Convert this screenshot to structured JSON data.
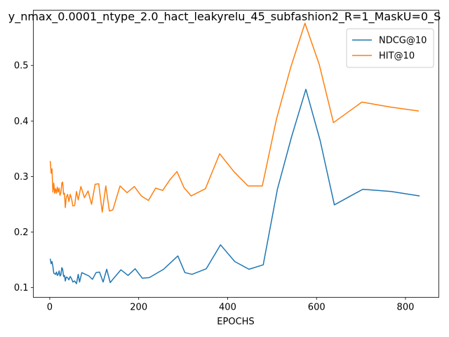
{
  "chart_data": {
    "type": "line",
    "title": "y_nmax_0.0001_ntype_2.0_hact_leakyrelu_45_subfashion2_R=1_MaskU=0_S",
    "xlabel": "EPOCHS",
    "ylabel": "",
    "xlim": [
      -37,
      875
    ],
    "ylim": [
      0.0825,
      0.5995
    ],
    "xticks": [
      0,
      200,
      400,
      600,
      800
    ],
    "yticks": [
      0.1,
      0.2,
      0.3,
      0.4,
      0.5
    ],
    "ytick_labels": [
      "0.1",
      "0.2",
      "0.3",
      "0.4",
      "0.5"
    ],
    "grid": false,
    "legend_position": "top-right",
    "series": [
      {
        "name": "NDCG@10",
        "color": "#1f77b4",
        "points": [
          [
            1,
            0.152
          ],
          [
            3,
            0.143
          ],
          [
            5,
            0.147
          ],
          [
            7,
            0.138
          ],
          [
            9,
            0.126
          ],
          [
            11,
            0.125
          ],
          [
            13,
            0.124
          ],
          [
            15,
            0.128
          ],
          [
            17,
            0.122
          ],
          [
            19,
            0.124
          ],
          [
            21,
            0.13
          ],
          [
            23,
            0.121
          ],
          [
            25,
            0.123
          ],
          [
            27,
            0.136
          ],
          [
            29,
            0.133
          ],
          [
            31,
            0.12
          ],
          [
            33,
            0.122
          ],
          [
            35,
            0.112
          ],
          [
            37,
            0.119
          ],
          [
            40,
            0.118
          ],
          [
            43,
            0.114
          ],
          [
            46,
            0.12
          ],
          [
            49,
            0.116
          ],
          [
            52,
            0.11
          ],
          [
            56,
            0.112
          ],
          [
            60,
            0.107
          ],
          [
            64,
            0.124
          ],
          [
            67,
            0.11
          ],
          [
            72,
            0.127
          ],
          [
            80,
            0.124
          ],
          [
            88,
            0.121
          ],
          [
            96,
            0.115
          ],
          [
            104,
            0.127
          ],
          [
            112,
            0.128
          ],
          [
            120,
            0.11
          ],
          [
            128,
            0.133
          ],
          [
            136,
            0.109
          ],
          [
            144,
            0.117
          ],
          [
            160,
            0.132
          ],
          [
            176,
            0.122
          ],
          [
            192,
            0.134
          ],
          [
            208,
            0.117
          ],
          [
            224,
            0.118
          ],
          [
            256,
            0.133
          ],
          [
            288,
            0.157
          ],
          [
            304,
            0.127
          ],
          [
            320,
            0.124
          ],
          [
            352,
            0.134
          ],
          [
            384,
            0.177
          ],
          [
            416,
            0.147
          ],
          [
            448,
            0.133
          ],
          [
            480,
            0.141
          ],
          [
            512,
            0.277
          ],
          [
            544,
            0.372
          ],
          [
            576,
            0.457
          ],
          [
            608,
            0.365
          ],
          [
            640,
            0.249
          ],
          [
            704,
            0.277
          ],
          [
            768,
            0.273
          ],
          [
            832,
            0.265
          ]
        ]
      },
      {
        "name": "HIT@10",
        "color": "#ff7f0e",
        "points": [
          [
            1,
            0.328
          ],
          [
            3,
            0.306
          ],
          [
            5,
            0.314
          ],
          [
            7,
            0.272
          ],
          [
            9,
            0.288
          ],
          [
            11,
            0.27
          ],
          [
            13,
            0.278
          ],
          [
            15,
            0.27
          ],
          [
            17,
            0.281
          ],
          [
            19,
            0.272
          ],
          [
            21,
            0.279
          ],
          [
            23,
            0.266
          ],
          [
            25,
            0.271
          ],
          [
            27,
            0.288
          ],
          [
            29,
            0.29
          ],
          [
            31,
            0.268
          ],
          [
            33,
            0.27
          ],
          [
            35,
            0.244
          ],
          [
            37,
            0.262
          ],
          [
            40,
            0.268
          ],
          [
            43,
            0.255
          ],
          [
            46,
            0.268
          ],
          [
            49,
            0.26
          ],
          [
            52,
            0.247
          ],
          [
            56,
            0.248
          ],
          [
            60,
            0.273
          ],
          [
            64,
            0.258
          ],
          [
            70,
            0.282
          ],
          [
            78,
            0.262
          ],
          [
            86,
            0.274
          ],
          [
            94,
            0.25
          ],
          [
            102,
            0.286
          ],
          [
            110,
            0.287
          ],
          [
            118,
            0.236
          ],
          [
            126,
            0.283
          ],
          [
            134,
            0.238
          ],
          [
            142,
            0.24
          ],
          [
            158,
            0.283
          ],
          [
            174,
            0.271
          ],
          [
            190,
            0.282
          ],
          [
            206,
            0.265
          ],
          [
            222,
            0.257
          ],
          [
            238,
            0.279
          ],
          [
            254,
            0.275
          ],
          [
            270,
            0.294
          ],
          [
            286,
            0.309
          ],
          [
            302,
            0.28
          ],
          [
            318,
            0.265
          ],
          [
            350,
            0.278
          ],
          [
            382,
            0.341
          ],
          [
            414,
            0.309
          ],
          [
            446,
            0.283
          ],
          [
            478,
            0.283
          ],
          [
            510,
            0.404
          ],
          [
            542,
            0.497
          ],
          [
            574,
            0.576
          ],
          [
            606,
            0.502
          ],
          [
            638,
            0.397
          ],
          [
            702,
            0.434
          ],
          [
            766,
            0.425
          ],
          [
            830,
            0.418
          ]
        ]
      }
    ]
  }
}
